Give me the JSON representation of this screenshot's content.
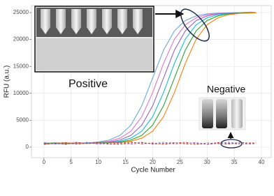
{
  "chart_data": {
    "type": "line",
    "x_label": "Cycle Number",
    "y_label": "RFU (a.u.)",
    "annotations": [
      "Positive",
      "Negative"
    ],
    "x": [
      0,
      2,
      4,
      6,
      8,
      10,
      12,
      14,
      16,
      18,
      20,
      22,
      24,
      26,
      28,
      30,
      32,
      34,
      36,
      38,
      39
    ],
    "series": [
      {
        "color": "#6fa8dc",
        "linestyle": "solid",
        "values": [
          650,
          820,
          700,
          760,
          800,
          960,
          1320,
          2190,
          4090,
          7680,
          12850,
          18020,
          21610,
          23520,
          24380,
          24750,
          24900,
          24950,
          25000,
          25000,
          25000
        ]
      },
      {
        "color": "#e377c2",
        "linestyle": "solid",
        "values": [
          720,
          640,
          780,
          730,
          770,
          860,
          1100,
          1670,
          2970,
          5650,
          10140,
          15560,
          20050,
          22730,
          24030,
          24600,
          24850,
          24900,
          25000,
          25100,
          25000
        ]
      },
      {
        "color": "#9467bd",
        "linestyle": "solid",
        "values": [
          580,
          700,
          760,
          710,
          740,
          800,
          960,
          1320,
          2190,
          4090,
          7680,
          12850,
          18020,
          21610,
          23520,
          24380,
          24750,
          24900,
          24950,
          25000,
          25000
        ]
      },
      {
        "color": "#17becf",
        "linestyle": "solid",
        "values": [
          800,
          690,
          620,
          700,
          730,
          770,
          860,
          1100,
          1670,
          2970,
          5650,
          10140,
          15560,
          20050,
          22730,
          24030,
          24600,
          24850,
          24900,
          25000,
          25000
        ]
      },
      {
        "color": "#2ca02c",
        "linestyle": "solid",
        "values": [
          700,
          760,
          650,
          720,
          710,
          740,
          800,
          960,
          1320,
          2190,
          4090,
          7680,
          12850,
          18020,
          21610,
          23520,
          24380,
          24750,
          24900,
          24950,
          25000
        ]
      },
      {
        "color": "#ff7f0e",
        "linestyle": "solid",
        "values": [
          620,
          700,
          800,
          680,
          700,
          730,
          770,
          860,
          1100,
          1670,
          2970,
          5650,
          10140,
          15560,
          20050,
          22730,
          24030,
          24600,
          24850,
          24900,
          24950
        ]
      },
      {
        "color": "#d62728",
        "linestyle": "dashed",
        "values": [
          600,
          750,
          500,
          900,
          650,
          800,
          550,
          700,
          950,
          600,
          800,
          500,
          750,
          900,
          650,
          550,
          850,
          700,
          600,
          800,
          750
        ]
      },
      {
        "color": "#9467bd",
        "linestyle": "dashed",
        "values": [
          850,
          550,
          700,
          600,
          900,
          500,
          750,
          850,
          550,
          800,
          650,
          900,
          600,
          700,
          850,
          500,
          700,
          900,
          650,
          550,
          800
        ]
      },
      {
        "color": "#8c564b",
        "linestyle": "dashed",
        "values": [
          500,
          700,
          850,
          550,
          700,
          900,
          600,
          500,
          750,
          900,
          550,
          700,
          850,
          600,
          500,
          800,
          650,
          550,
          900,
          700,
          600
        ]
      }
    ],
    "xlim": [
      -2.3,
      41.8
    ],
    "ylim": [
      -1950,
      26300
    ],
    "xticks": [
      0,
      5,
      10,
      15,
      20,
      25,
      30,
      35,
      40
    ],
    "yticks": [
      0,
      5000,
      10000,
      15000,
      20000,
      25000
    ],
    "grid": true
  }
}
